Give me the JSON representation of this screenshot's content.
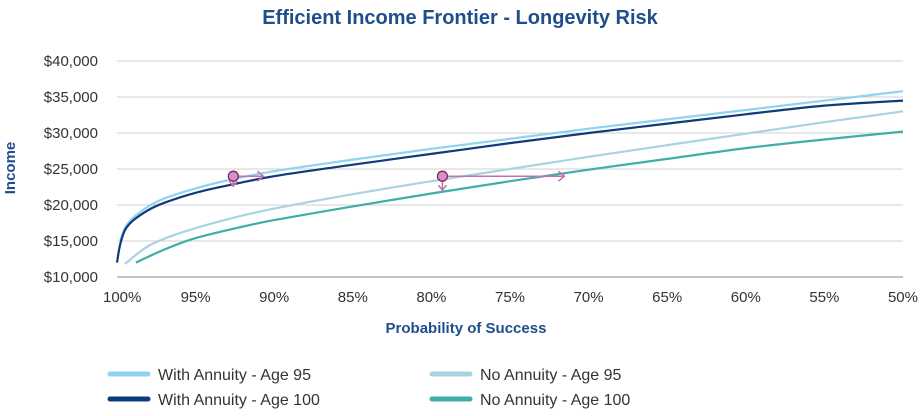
{
  "chart_data": {
    "type": "line",
    "title": "Efficient Income Frontier - Longevity Risk",
    "xlabel": "Probability of Success",
    "ylabel": "Income",
    "x_ticks": [
      "100%",
      "95%",
      "90%",
      "85%",
      "80%",
      "75%",
      "70%",
      "65%",
      "60%",
      "55%",
      "50%"
    ],
    "y_ticks": [
      "$10,000",
      "$15,000",
      "$20,000",
      "$25,000",
      "$30,000",
      "$35,000",
      "$40,000"
    ],
    "xlim": [
      100,
      50
    ],
    "ylim": [
      10000,
      40000
    ],
    "grid": "horizontal",
    "legend_position": "bottom",
    "series": [
      {
        "name": "With Annuity - Age 95",
        "color": "#8fd3f2",
        "x": [
          99.8,
          99.5,
          99,
          98,
          97,
          95,
          93,
          90,
          85,
          80,
          75,
          70,
          65,
          60,
          55,
          50
        ],
        "y": [
          15000,
          16800,
          18200,
          19800,
          20900,
          22300,
          23400,
          24700,
          26300,
          27800,
          29200,
          30600,
          31900,
          33200,
          34500,
          35800
        ]
      },
      {
        "name": "With Annuity - Age 100",
        "color": "#0e3b7a",
        "x": [
          100,
          99.8,
          99.5,
          99,
          98,
          97,
          95,
          93,
          90,
          85,
          80,
          75,
          70,
          65,
          60,
          55,
          50
        ],
        "y": [
          12000,
          14500,
          16500,
          17800,
          19300,
          20300,
          21700,
          22700,
          24000,
          25600,
          27100,
          28600,
          30000,
          31300,
          32600,
          33800,
          34500
        ]
      },
      {
        "name": "No Annuity - Age 95",
        "color": "#a8d4e0",
        "x": [
          99.5,
          98,
          96,
          93,
          90,
          85,
          80,
          75,
          70,
          65,
          60,
          55,
          50
        ],
        "y": [
          11800,
          14300,
          16100,
          18000,
          19500,
          21500,
          23300,
          25000,
          26700,
          28300,
          29900,
          31500,
          33000
        ]
      },
      {
        "name": "No Annuity - Age 100",
        "color": "#3fada8",
        "x": [
          98.8,
          97,
          95,
          92,
          90,
          85,
          80,
          75,
          70,
          65,
          60,
          55,
          50
        ],
        "y": [
          12000,
          13800,
          15400,
          17000,
          17900,
          19800,
          21600,
          23300,
          24900,
          26400,
          27900,
          29100,
          30200
        ]
      }
    ],
    "annotations": [
      {
        "x": 92.6,
        "y": 24000,
        "arrows": [
          "right",
          "down"
        ]
      },
      {
        "x": 79.3,
        "y": 24000,
        "arrows": [
          "right",
          "down"
        ]
      }
    ],
    "annotation_color": "#c46fb0"
  }
}
